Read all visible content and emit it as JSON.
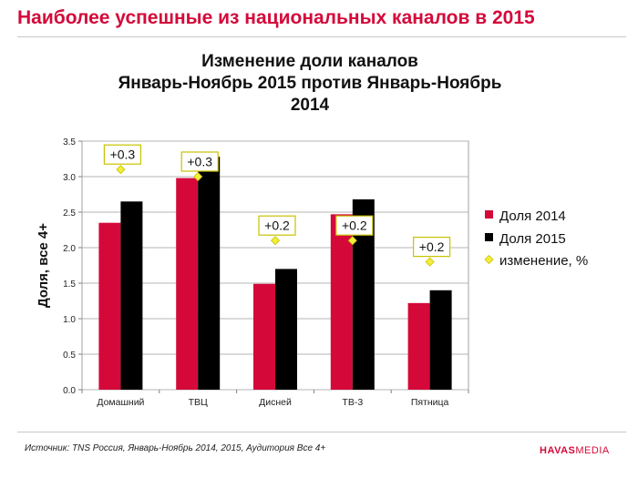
{
  "header": {
    "title": "Наиболее успешные из национальных каналов в 2015"
  },
  "chart_data": {
    "type": "bar",
    "title_lines": [
      "Изменение доли каналов",
      "Январь-Ноябрь 2015 против Январь-Ноябрь",
      "2014"
    ],
    "categories": [
      "Домашний",
      "ТВЦ",
      "Дисней",
      "ТВ-3",
      "Пятница"
    ],
    "series": [
      {
        "name": "Доля 2014",
        "values": [
          2.35,
          2.98,
          1.49,
          2.47,
          1.22
        ],
        "color": "#d4093a"
      },
      {
        "name": "Доля 2015",
        "values": [
          2.65,
          3.28,
          1.7,
          2.68,
          1.4
        ],
        "color": "#000000"
      }
    ],
    "change_series": {
      "name": "изменение, %",
      "values": [
        0.3,
        0.3,
        0.2,
        0.2,
        0.2
      ],
      "marker_y": [
        3.1,
        3.0,
        2.1,
        2.1,
        1.8
      ],
      "labels": [
        "+0.3",
        "+0.3",
        "+0.2",
        "+0.2",
        "+0.2"
      ],
      "color": "#f2ee3a"
    },
    "ylabel": "Доля,  все 4+",
    "xlabel": "",
    "ylim": [
      0,
      3.5
    ],
    "yticks": [
      "0.0",
      "0.5",
      "1.0",
      "1.5",
      "2.0",
      "2.5",
      "3.0",
      "3.5"
    ],
    "grid": true,
    "legend_position": "right"
  },
  "footer": {
    "source": "Источник:  TNS Россия, Январь-Ноябрь  2014, 2015,  Аудитория  Все 4+",
    "brand_bold": "HAVAS",
    "brand_light": "MEDIA"
  }
}
